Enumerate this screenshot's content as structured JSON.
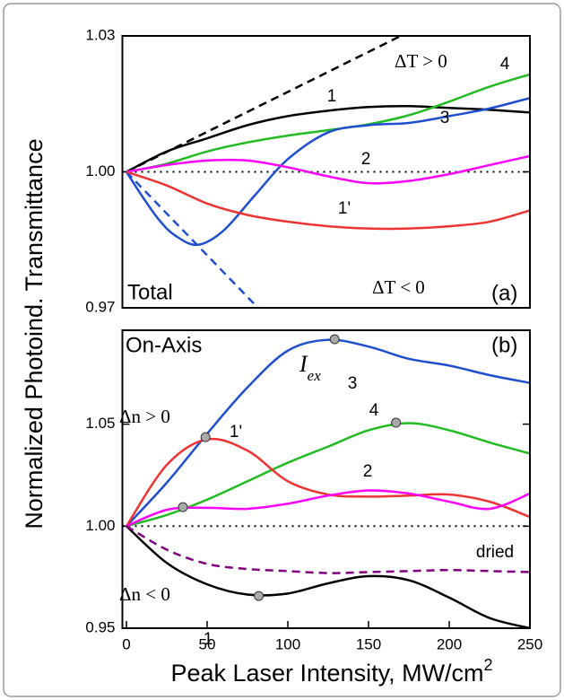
{
  "figure": {
    "ylabel": "Normalized Photoind. Transmittance",
    "xlabel": "Peak Laser Intensity, MW/cm",
    "xlabel_sup": "2"
  },
  "chart_data": [
    {
      "type": "line",
      "xlim": [
        -2.5,
        250
      ],
      "ylim": [
        0.97,
        1.03
      ],
      "yticks": [
        0.97,
        {
          "value": 1,
          "label": "1.00"
        },
        1.03
      ],
      "reference_y": 1,
      "annotations": [
        "ΔT > 0",
        "ΔT < 0",
        "Total",
        "(a)"
      ],
      "series": [
        {
          "name": "1",
          "color": "#000000",
          "x": [
            0,
            25,
            50,
            75,
            100,
            125,
            150,
            175,
            200,
            225,
            250
          ],
          "values": [
            1,
            1.0045,
            1.0074,
            1.0103,
            1.0123,
            1.0135,
            1.0143,
            1.0145,
            1.0141,
            1.0137,
            1.0131
          ]
        },
        {
          "color": "#000000",
          "dashed": true,
          "x": [
            0,
            170
          ],
          "values": [
            1,
            1.03
          ]
        },
        {
          "name": "4",
          "color": "#22bb22",
          "x": [
            0,
            25,
            50,
            75,
            100,
            125,
            150,
            175,
            200,
            225,
            250
          ],
          "values": [
            1,
            1.0018,
            1.0045,
            1.0065,
            1.008,
            1.0092,
            1.0105,
            1.0125,
            1.0155,
            1.0188,
            1.0215
          ]
        },
        {
          "name": "3",
          "color": "#1f4fd0",
          "x": [
            0,
            10,
            20,
            30,
            44,
            60,
            80,
            100,
            125,
            150,
            175,
            200,
            225,
            250
          ],
          "values": [
            1,
            0.9945,
            0.9895,
            0.986,
            0.9839,
            0.987,
            0.995,
            1.0028,
            1.0087,
            1.0103,
            1.0108,
            1.0123,
            1.014,
            1.0163
          ]
        },
        {
          "color": "#1f4fd0",
          "dashed": true,
          "x": [
            0,
            81.5
          ],
          "values": [
            1,
            0.97
          ]
        },
        {
          "name": "2",
          "color": "#ff00ff",
          "x": [
            0,
            25,
            50,
            75,
            100,
            125,
            150,
            175,
            200,
            225,
            250
          ],
          "values": [
            1,
            1.0015,
            1.0025,
            1.0025,
            1.001,
            0.999,
            0.9975,
            0.998,
            0.9995,
            1.0015,
            1.0035
          ]
        },
        {
          "name": "1'",
          "color": "#ee3333",
          "x": [
            0,
            25,
            50,
            75,
            100,
            125,
            150,
            175,
            200,
            225,
            250
          ],
          "values": [
            1,
            0.997,
            0.993,
            0.9905,
            0.989,
            0.988,
            0.9875,
            0.9875,
            0.988,
            0.989,
            0.9915
          ]
        }
      ]
    },
    {
      "type": "line",
      "xlim": [
        -2.5,
        250
      ],
      "ylim": [
        0.95,
        1.096
      ],
      "xticks": [
        0,
        50,
        100,
        150,
        200,
        250
      ],
      "yticks": [
        0.95,
        {
          "value": 1,
          "label": "1.00"
        },
        1.05
      ],
      "reference_y": 1,
      "annotations": [
        "On-Axis",
        "(b)",
        "Δn > 0",
        "Δn < 0",
        {
          "text": "I",
          "sub": "ex"
        }
      ],
      "series": [
        {
          "name": "3",
          "color": "#1f4fd0",
          "x": [
            0,
            25,
            50,
            75,
            100,
            125,
            150,
            175,
            200,
            225,
            250
          ],
          "values": [
            1,
            1.0213,
            1.0453,
            1.068,
            1.086,
            1.0913,
            1.088,
            1.082,
            1.0787,
            1.074,
            1.0702
          ]
        },
        {
          "name": "4",
          "color": "#22bb22",
          "x": [
            0,
            25,
            50,
            75,
            100,
            125,
            150,
            175,
            200,
            225,
            250
          ],
          "values": [
            1,
            1.0055,
            1.013,
            1.022,
            1.0311,
            1.039,
            1.047,
            1.0505,
            1.047,
            1.041,
            1.0356
          ]
        },
        {
          "name": "1'",
          "color": "#ee3333",
          "x": [
            0,
            25,
            50,
            75,
            100,
            125,
            150,
            175,
            200,
            225,
            250
          ],
          "values": [
            1,
            1.03,
            1.0425,
            1.037,
            1.022,
            1.0155,
            1.0145,
            1.015,
            1.0155,
            1.012,
            1.0045
          ]
        },
        {
          "name": "2",
          "color": "#ff00ff",
          "x": [
            0,
            25,
            50,
            75,
            100,
            125,
            150,
            175,
            200,
            225,
            250
          ],
          "values": [
            1,
            1.008,
            1.009,
            1.0085,
            1.011,
            1.015,
            1.0175,
            1.016,
            1.012,
            1.0085,
            1.016
          ]
        },
        {
          "name": "1",
          "color": "#000000",
          "x": [
            0,
            25,
            50,
            75,
            100,
            125,
            150,
            175,
            200,
            225,
            250
          ],
          "values": [
            1,
            0.982,
            0.9715,
            0.9665,
            0.967,
            0.972,
            0.9755,
            0.9735,
            0.965,
            0.955,
            0.95
          ]
        },
        {
          "name": "dried",
          "color": "#800080",
          "dashed": true,
          "x": [
            0,
            25,
            50,
            75,
            100,
            125,
            150,
            175,
            200,
            225,
            250
          ],
          "values": [
            1,
            0.9885,
            0.9815,
            0.979,
            0.978,
            0.977,
            0.9775,
            0.978,
            0.9785,
            0.978,
            0.9775
          ]
        }
      ],
      "markers": {
        "x": [
          35,
          49,
          82,
          129,
          167
        ],
        "values": [
          1.0093,
          1.0436,
          0.9658,
          1.0916,
          1.0507
        ]
      }
    }
  ]
}
